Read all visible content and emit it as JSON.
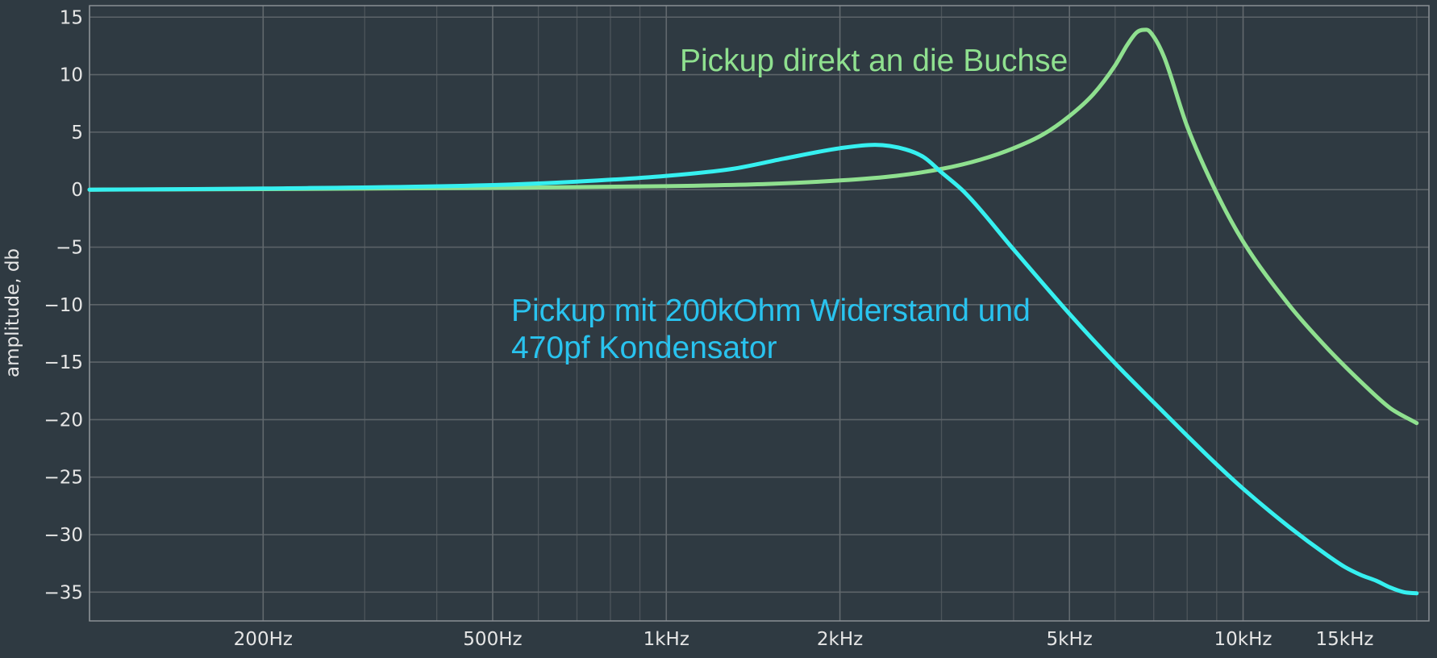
{
  "chart_data": {
    "type": "line",
    "title": "",
    "xlabel": "",
    "ylabel": "amplitude, db",
    "x_scale": "log",
    "xlim": [
      100,
      21000
    ],
    "ylim": [
      -37.5,
      16
    ],
    "grid": true,
    "x_tick_labels": [
      {
        "value": 200,
        "label": "200Hz"
      },
      {
        "value": 500,
        "label": "500Hz"
      },
      {
        "value": 1000,
        "label": "1kHz"
      },
      {
        "value": 2000,
        "label": "2kHz"
      },
      {
        "value": 5000,
        "label": "5kHz"
      },
      {
        "value": 10000,
        "label": "10kHz"
      },
      {
        "value": 15000,
        "label": "15kHz"
      }
    ],
    "y_ticks": [
      15,
      10,
      5,
      0,
      -5,
      -10,
      -15,
      -20,
      -25,
      -30,
      -35
    ],
    "y_tick_labels": [
      "15",
      "10",
      "5",
      "0",
      "−5",
      "−10",
      "−15",
      "−20",
      "−25",
      "−30",
      "−35"
    ],
    "series": [
      {
        "name": "Pickup direkt an die Buchse",
        "color": "#8fe08f",
        "x": [
          100,
          200,
          500,
          1000,
          1500,
          2000,
          2500,
          3000,
          3500,
          4000,
          4500,
          5000,
          5500,
          6000,
          6300,
          6550,
          6800,
          7000,
          7300,
          8000,
          9000,
          10000,
          12000,
          14000,
          16000,
          18000,
          20000
        ],
        "y": [
          0,
          0.05,
          0.15,
          0.3,
          0.5,
          0.8,
          1.2,
          1.8,
          2.6,
          3.6,
          4.8,
          6.4,
          8.3,
          10.8,
          12.6,
          13.7,
          13.9,
          13.3,
          11.5,
          5.5,
          -0.3,
          -4.5,
          -10,
          -13.8,
          -16.7,
          -19,
          -20.3
        ]
      },
      {
        "name": "Pickup mit 200kOhm Widerstand und 470pf Kondensator",
        "color": "#36f0f0",
        "x": [
          100,
          200,
          500,
          700,
          1000,
          1300,
          1600,
          2000,
          2300,
          2600,
          2800,
          3000,
          3300,
          4000,
          5000,
          6000,
          7000,
          8000,
          9000,
          10000,
          12000,
          14000,
          15000,
          16000,
          17000,
          18000,
          19000,
          20000
        ],
        "y": [
          0,
          0.1,
          0.4,
          0.7,
          1.2,
          1.8,
          2.7,
          3.6,
          3.9,
          3.5,
          2.8,
          1.5,
          -0.3,
          -5.2,
          -10.8,
          -15.1,
          -18.5,
          -21.4,
          -23.9,
          -26.0,
          -29.3,
          -31.8,
          -32.8,
          -33.5,
          -34.0,
          -34.6,
          -35.0,
          -35.1
        ]
      }
    ],
    "annotations": [
      {
        "text": "Pickup direkt an die Buchse",
        "color": "#8fe08f"
      },
      {
        "lines": [
          "Pickup mit 200kOhm Widerstand und",
          "470pf Kondensator"
        ],
        "color": "#29c3ef"
      }
    ]
  }
}
